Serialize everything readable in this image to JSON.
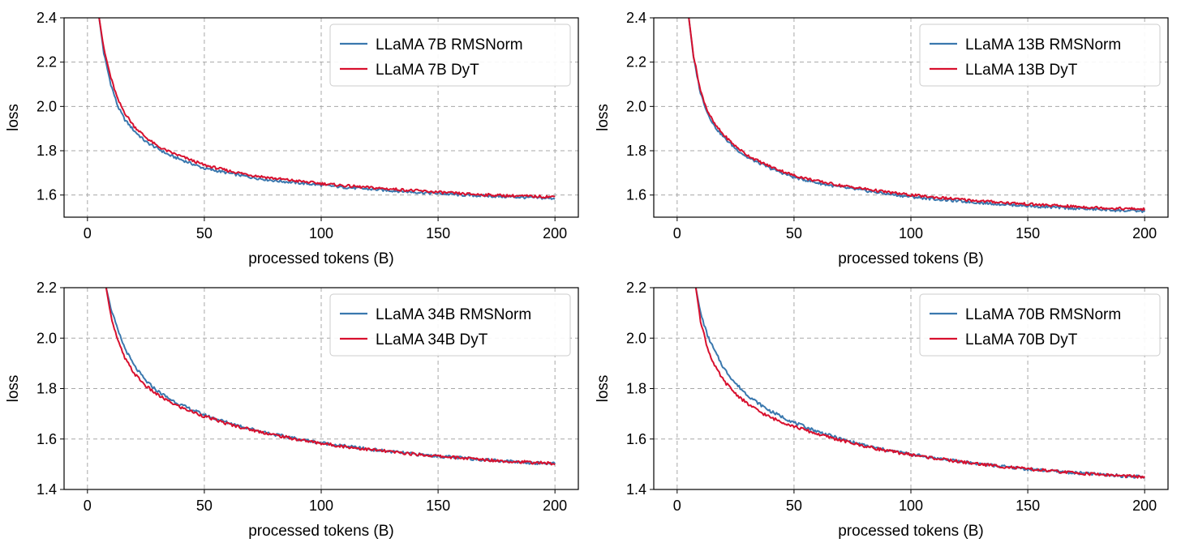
{
  "colors": {
    "rmsnorm": "#3a78ae",
    "dyt": "#d8102e",
    "grid": "#a8a8a8"
  },
  "chart_data": [
    {
      "type": "line",
      "xlabel": "processed tokens (B)",
      "ylabel": "loss",
      "xlim": [
        -10,
        210
      ],
      "ylim": [
        1.5,
        2.4
      ],
      "xticks": [
        "0",
        "50",
        "100",
        "150",
        "200"
      ],
      "yticks": [
        "1.6",
        "1.8",
        "2.0",
        "2.2",
        "2.4"
      ],
      "grid": true,
      "legend_position": "top-right",
      "series": [
        {
          "name": "LLaMA 7B RMSNorm",
          "color": "#3a78ae",
          "x": [
            5,
            7,
            10,
            13,
            16,
            20,
            25,
            30,
            35,
            40,
            50,
            60,
            70,
            80,
            90,
            100,
            110,
            120,
            130,
            140,
            150,
            160,
            170,
            180,
            190,
            200
          ],
          "y": [
            2.4,
            2.24,
            2.1,
            2.0,
            1.94,
            1.89,
            1.84,
            1.81,
            1.78,
            1.76,
            1.72,
            1.7,
            1.68,
            1.665,
            1.655,
            1.645,
            1.635,
            1.627,
            1.62,
            1.613,
            1.607,
            1.6,
            1.596,
            1.592,
            1.588,
            1.585
          ]
        },
        {
          "name": "LLaMA 7B DyT",
          "color": "#d8102e",
          "x": [
            5,
            7,
            10,
            13,
            16,
            20,
            25,
            30,
            35,
            40,
            50,
            60,
            70,
            80,
            90,
            100,
            110,
            120,
            130,
            140,
            150,
            160,
            170,
            180,
            190,
            200
          ],
          "y": [
            2.4,
            2.26,
            2.13,
            2.03,
            1.97,
            1.91,
            1.86,
            1.82,
            1.795,
            1.775,
            1.735,
            1.71,
            1.69,
            1.675,
            1.663,
            1.652,
            1.642,
            1.634,
            1.627,
            1.62,
            1.613,
            1.606,
            1.601,
            1.597,
            1.594,
            1.592
          ]
        }
      ]
    },
    {
      "type": "line",
      "xlabel": "processed tokens (B)",
      "ylabel": "loss",
      "xlim": [
        -10,
        210
      ],
      "ylim": [
        1.5,
        2.4
      ],
      "xticks": [
        "0",
        "50",
        "100",
        "150",
        "200"
      ],
      "yticks": [
        "1.6",
        "1.8",
        "2.0",
        "2.2",
        "2.4"
      ],
      "grid": true,
      "legend_position": "top-right",
      "series": [
        {
          "name": "LLaMA 13B RMSNorm",
          "color": "#3a78ae",
          "x": [
            5,
            7,
            10,
            13,
            16,
            20,
            25,
            30,
            35,
            40,
            50,
            60,
            70,
            80,
            90,
            100,
            110,
            120,
            130,
            140,
            150,
            160,
            170,
            180,
            190,
            200
          ],
          "y": [
            2.4,
            2.22,
            2.06,
            1.97,
            1.91,
            1.86,
            1.81,
            1.77,
            1.745,
            1.72,
            1.68,
            1.655,
            1.635,
            1.62,
            1.605,
            1.592,
            1.582,
            1.573,
            1.565,
            1.558,
            1.551,
            1.545,
            1.54,
            1.535,
            1.53,
            1.527
          ]
        },
        {
          "name": "LLaMA 13B DyT",
          "color": "#d8102e",
          "x": [
            5,
            7,
            10,
            13,
            16,
            20,
            25,
            30,
            35,
            40,
            50,
            60,
            70,
            80,
            90,
            100,
            110,
            120,
            130,
            140,
            150,
            160,
            170,
            180,
            190,
            200
          ],
          "y": [
            2.4,
            2.23,
            2.07,
            1.98,
            1.92,
            1.87,
            1.82,
            1.78,
            1.752,
            1.728,
            1.688,
            1.663,
            1.643,
            1.628,
            1.613,
            1.6,
            1.59,
            1.581,
            1.573,
            1.566,
            1.559,
            1.553,
            1.548,
            1.543,
            1.539,
            1.536
          ]
        }
      ]
    },
    {
      "type": "line",
      "xlabel": "processed tokens (B)",
      "ylabel": "loss",
      "xlim": [
        -10,
        210
      ],
      "ylim": [
        1.4,
        2.2
      ],
      "xticks": [
        "0",
        "50",
        "100",
        "150",
        "200"
      ],
      "yticks": [
        "1.4",
        "1.6",
        "1.8",
        "2.0",
        "2.2"
      ],
      "grid": true,
      "legend_position": "top-right",
      "series": [
        {
          "name": "LLaMA 34B RMSNorm",
          "color": "#3a78ae",
          "x": [
            8,
            10,
            13,
            16,
            20,
            25,
            30,
            35,
            40,
            50,
            60,
            70,
            80,
            90,
            100,
            110,
            120,
            130,
            140,
            150,
            160,
            170,
            180,
            190,
            200
          ],
          "y": [
            2.2,
            2.12,
            2.03,
            1.96,
            1.89,
            1.83,
            1.79,
            1.76,
            1.735,
            1.695,
            1.665,
            1.64,
            1.618,
            1.6,
            1.585,
            1.572,
            1.56,
            1.55,
            1.54,
            1.532,
            1.525,
            1.518,
            1.512,
            1.506,
            1.502
          ]
        },
        {
          "name": "LLaMA 34B DyT",
          "color": "#d8102e",
          "x": [
            8,
            10,
            13,
            16,
            20,
            25,
            30,
            35,
            40,
            50,
            60,
            70,
            80,
            90,
            100,
            110,
            120,
            130,
            140,
            150,
            160,
            170,
            180,
            190,
            200
          ],
          "y": [
            2.2,
            2.09,
            1.99,
            1.92,
            1.86,
            1.81,
            1.775,
            1.748,
            1.725,
            1.69,
            1.66,
            1.637,
            1.616,
            1.598,
            1.583,
            1.57,
            1.559,
            1.549,
            1.54,
            1.532,
            1.525,
            1.518,
            1.512,
            1.507,
            1.503
          ]
        }
      ]
    },
    {
      "type": "line",
      "xlabel": "processed tokens (B)",
      "ylabel": "loss",
      "xlim": [
        -10,
        210
      ],
      "ylim": [
        1.4,
        2.2
      ],
      "xticks": [
        "0",
        "50",
        "100",
        "150",
        "200"
      ],
      "yticks": [
        "1.4",
        "1.6",
        "1.8",
        "2.0",
        "2.2"
      ],
      "grid": true,
      "legend_position": "top-right",
      "series": [
        {
          "name": "LLaMA 70B RMSNorm",
          "color": "#3a78ae",
          "x": [
            8,
            10,
            13,
            16,
            20,
            25,
            30,
            35,
            40,
            50,
            60,
            70,
            80,
            90,
            100,
            110,
            120,
            130,
            140,
            150,
            160,
            170,
            180,
            190,
            200
          ],
          "y": [
            2.2,
            2.1,
            2.01,
            1.95,
            1.88,
            1.82,
            1.775,
            1.74,
            1.71,
            1.665,
            1.63,
            1.6,
            1.575,
            1.555,
            1.54,
            1.525,
            1.512,
            1.501,
            1.49,
            1.481,
            1.473,
            1.466,
            1.46,
            1.454,
            1.449
          ]
        },
        {
          "name": "LLaMA 70B DyT",
          "color": "#d8102e",
          "x": [
            8,
            10,
            13,
            16,
            20,
            25,
            30,
            35,
            40,
            50,
            60,
            70,
            80,
            90,
            100,
            110,
            120,
            130,
            140,
            150,
            160,
            170,
            180,
            190,
            200
          ],
          "y": [
            2.2,
            2.07,
            1.96,
            1.89,
            1.83,
            1.78,
            1.74,
            1.71,
            1.685,
            1.65,
            1.62,
            1.595,
            1.572,
            1.553,
            1.538,
            1.524,
            1.511,
            1.5,
            1.49,
            1.481,
            1.473,
            1.466,
            1.46,
            1.454,
            1.449
          ]
        }
      ]
    }
  ]
}
